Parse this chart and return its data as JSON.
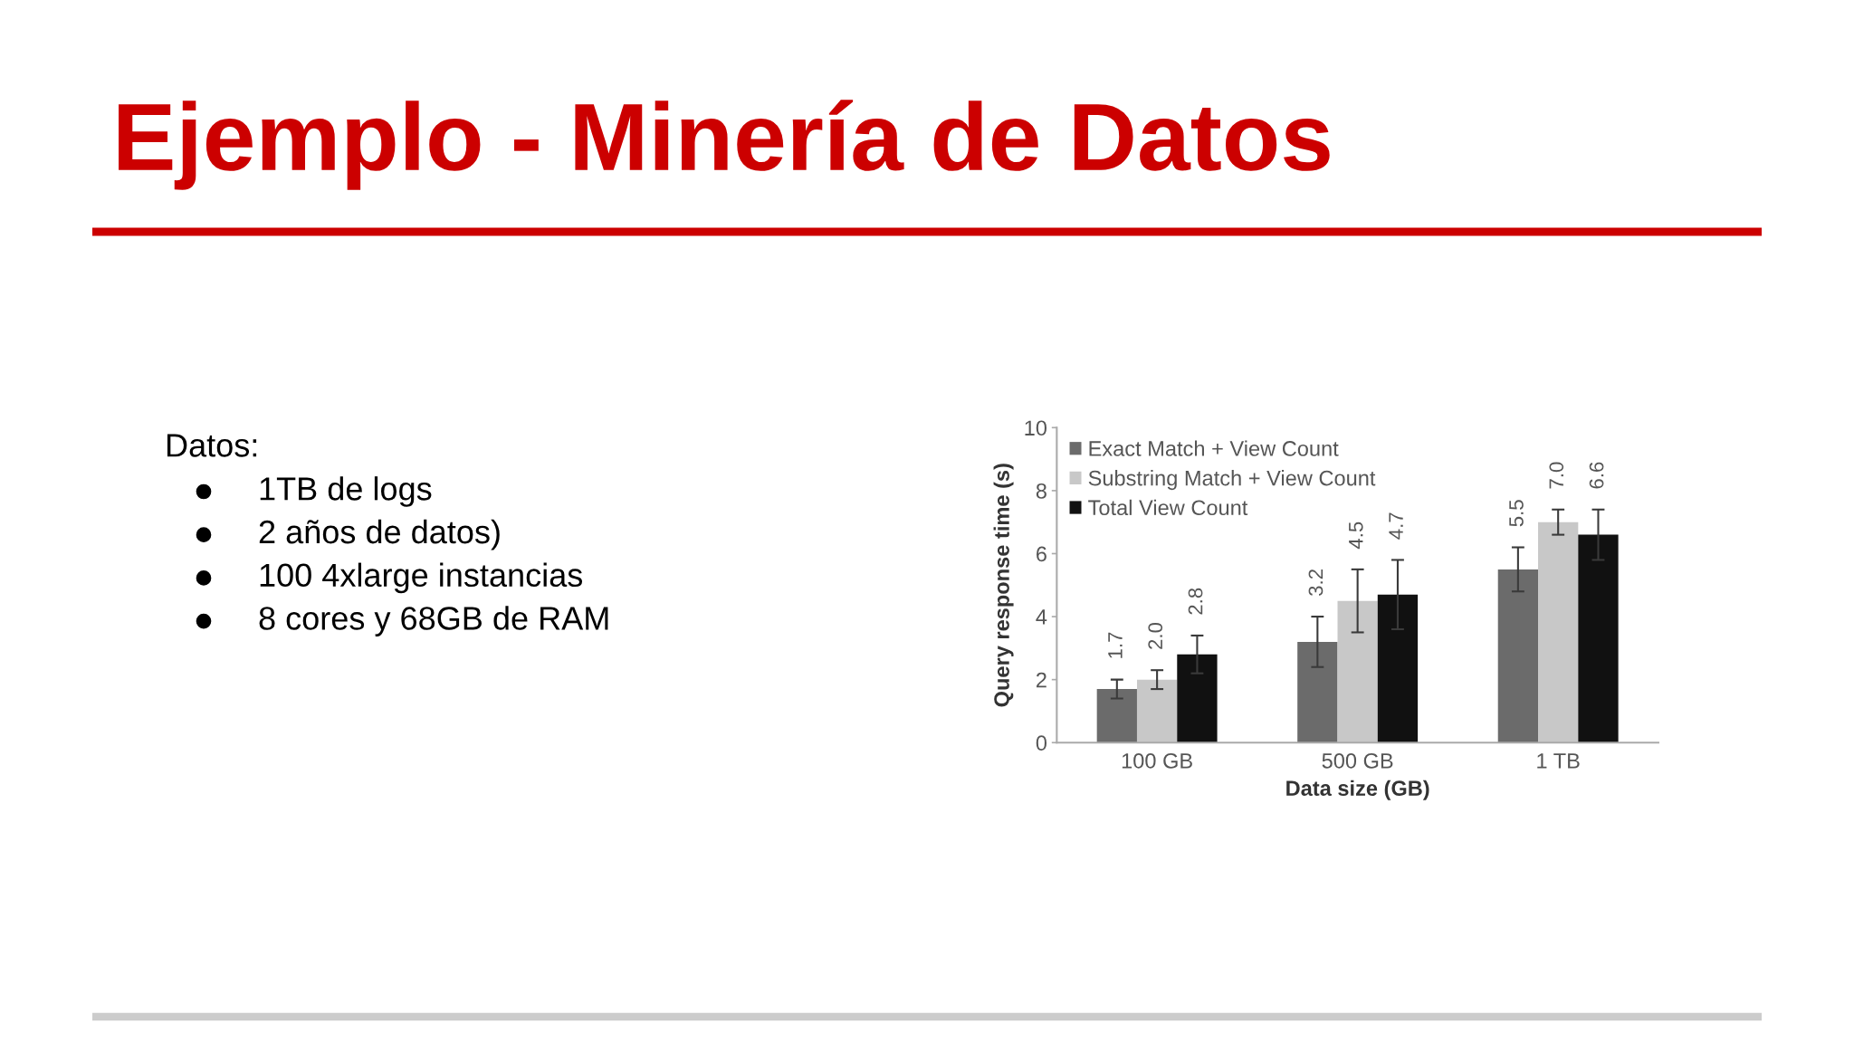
{
  "chart_data": {
    "type": "bar",
    "title": "Ejemplo - Minería de Datos",
    "annotations": [
      "Datos:",
      "1TB de logs",
      "2 años de datos)",
      "100 4xlarge instancias",
      "8 cores y 68GB de RAM"
    ],
    "categories": [
      "100 GB",
      "500 GB",
      "1 TB"
    ],
    "xlabel": "Data size (GB)",
    "ylabel": "Query response time (s)",
    "ylim": [
      0,
      10
    ],
    "yticks": [
      0,
      2,
      4,
      6,
      8,
      10
    ],
    "legend": "top left",
    "series": [
      {
        "name": "Exact Match + View Count",
        "color": "#6b6b6b",
        "values": [
          1.7,
          3.2,
          5.5
        ],
        "errors": [
          0.3,
          0.8,
          0.7
        ],
        "value_labels": [
          "1.7",
          "3.2",
          "5.5"
        ]
      },
      {
        "name": "Substring Match + View Count",
        "color": "#c8c8c8",
        "values": [
          2.0,
          4.5,
          7.0
        ],
        "errors": [
          0.3,
          1.0,
          0.4
        ],
        "value_labels": [
          "2.0",
          "4.5",
          "7.0"
        ]
      },
      {
        "name": "Total View Count",
        "color": "#111111",
        "values": [
          2.8,
          4.7,
          6.6
        ],
        "errors": [
          0.6,
          1.1,
          0.8
        ],
        "value_labels": [
          "2.8",
          "4.7",
          "6.6"
        ]
      }
    ]
  }
}
